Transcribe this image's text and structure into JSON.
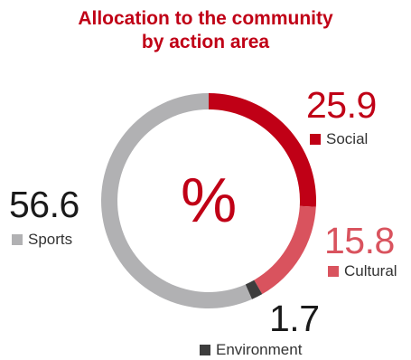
{
  "chart_data": {
    "type": "donut",
    "title_lines": [
      "Allocation to the community",
      "by action area"
    ],
    "center_label": "%",
    "slices": [
      {
        "label": "Social",
        "value": 25.9,
        "value_text": "25.9",
        "color": "#c00016"
      },
      {
        "label": "Cultural",
        "value": 15.8,
        "value_text": "15.8",
        "color": "#d9535e"
      },
      {
        "label": "Environment",
        "value": 1.7,
        "value_text": "1.7",
        "color": "#3d3d3d"
      },
      {
        "label": "Sports",
        "value": 56.6,
        "value_text": "56.6",
        "color": "#b1b1b3"
      }
    ],
    "start_angle_deg": 0,
    "direction": "clockwise"
  },
  "colors": {
    "title": "#c00016",
    "center_symbol": "#c00016",
    "value_text_dark": "#1a1a1a"
  }
}
